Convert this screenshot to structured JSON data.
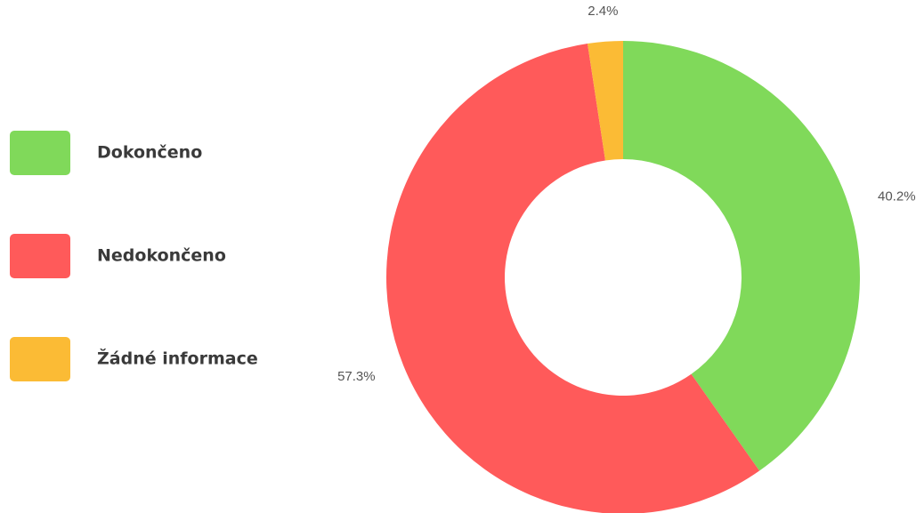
{
  "chart_data": {
    "type": "donut",
    "categories": [
      "Dokončeno",
      "Nedokončeno",
      "Žádné informace"
    ],
    "values": [
      40.2,
      57.3,
      2.4
    ],
    "value_labels": [
      "40.2%",
      "57.3%",
      "2.4%"
    ],
    "colors": [
      "#80d95a",
      "#ff5a5a",
      "#fbbb35"
    ]
  }
}
